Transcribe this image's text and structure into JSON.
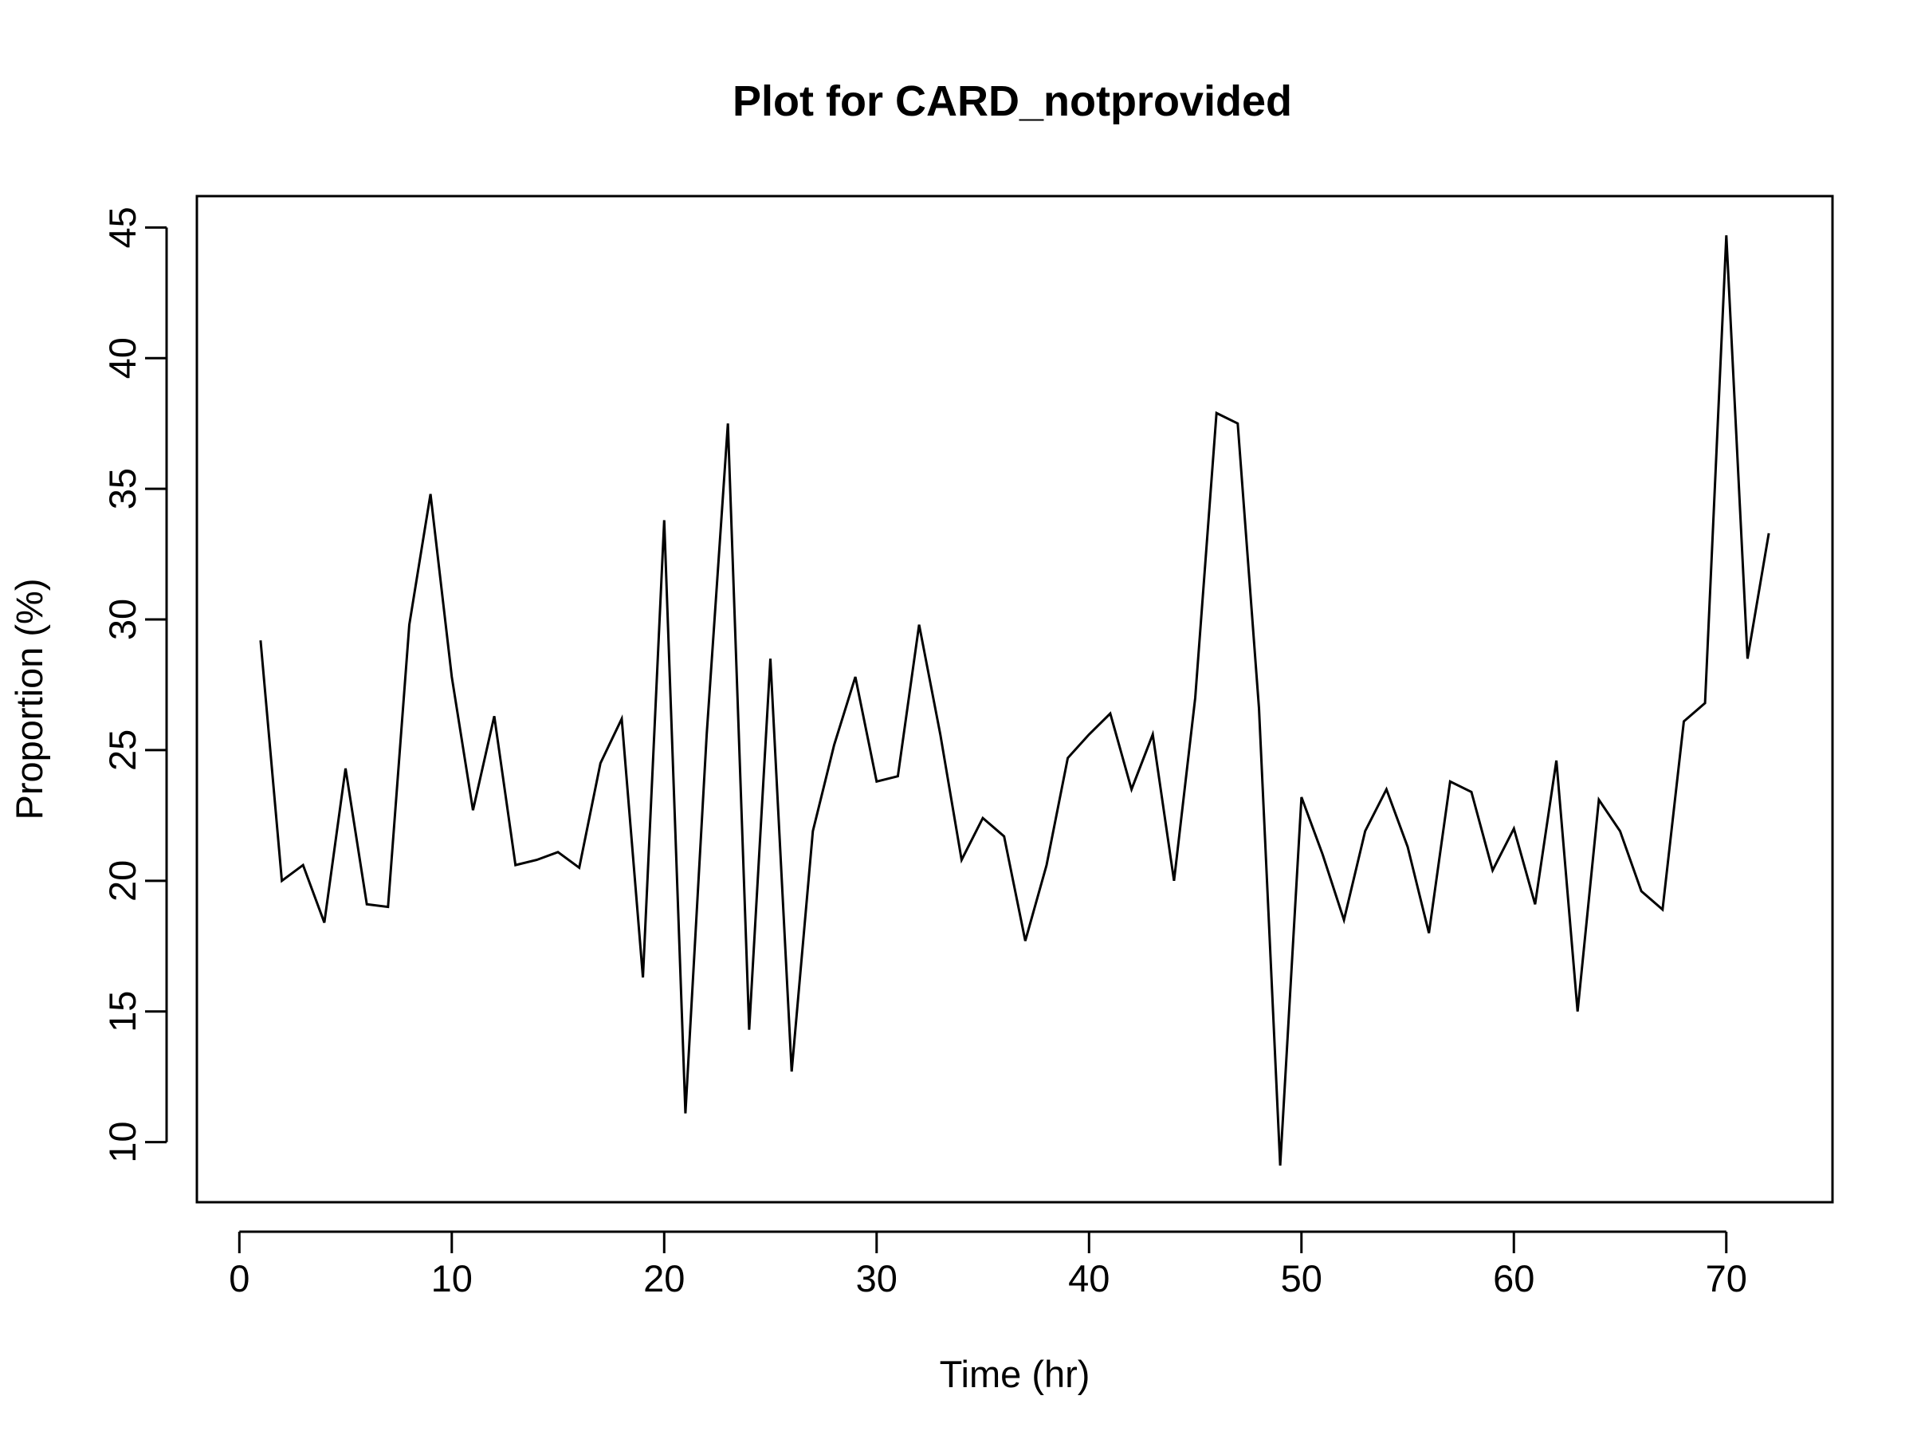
{
  "chart_data": {
    "type": "line",
    "title": "Plot for CARD_notprovided",
    "xlabel": "Time (hr)",
    "ylabel": "Proportion (%)",
    "xlim": [
      -2,
      75
    ],
    "ylim": [
      7.7,
      46.2
    ],
    "xticks": [
      0,
      10,
      20,
      30,
      40,
      50,
      60,
      70
    ],
    "yticks": [
      10,
      15,
      20,
      25,
      30,
      35,
      40,
      45
    ],
    "grid": false,
    "legend": "none",
    "line_color": "#000000",
    "x": [
      1,
      2,
      3,
      4,
      5,
      6,
      7,
      8,
      9,
      10,
      11,
      12,
      13,
      14,
      15,
      16,
      17,
      18,
      19,
      20,
      21,
      22,
      23,
      24,
      25,
      26,
      27,
      28,
      29,
      30,
      31,
      32,
      33,
      34,
      35,
      36,
      37,
      38,
      39,
      40,
      41,
      42,
      43,
      44,
      45,
      46,
      47,
      48,
      49,
      50,
      51,
      52,
      53,
      54,
      55,
      56,
      57,
      58,
      59,
      60,
      61,
      62,
      63,
      64,
      65,
      66,
      67,
      68,
      69,
      70,
      71,
      72
    ],
    "values": [
      29.2,
      20.0,
      20.6,
      18.4,
      24.3,
      19.1,
      19.0,
      29.8,
      34.8,
      27.8,
      22.7,
      26.3,
      20.6,
      20.8,
      21.1,
      20.5,
      24.5,
      26.2,
      16.3,
      33.8,
      11.1,
      25.6,
      37.5,
      14.3,
      28.5,
      12.7,
      21.9,
      25.2,
      27.8,
      23.8,
      24.0,
      29.8,
      25.6,
      20.8,
      22.4,
      21.7,
      17.7,
      20.6,
      24.7,
      25.6,
      26.4,
      23.5,
      25.6,
      20.0,
      27.0,
      37.9,
      37.5,
      26.6,
      9.1,
      23.2,
      21.0,
      18.5,
      21.9,
      23.5,
      21.3,
      18.0,
      23.8,
      23.4,
      20.4,
      22.0,
      19.1,
      24.6,
      15.0,
      23.1,
      21.9,
      19.6,
      18.9,
      26.1,
      26.8,
      44.7,
      28.5,
      33.3
    ]
  }
}
